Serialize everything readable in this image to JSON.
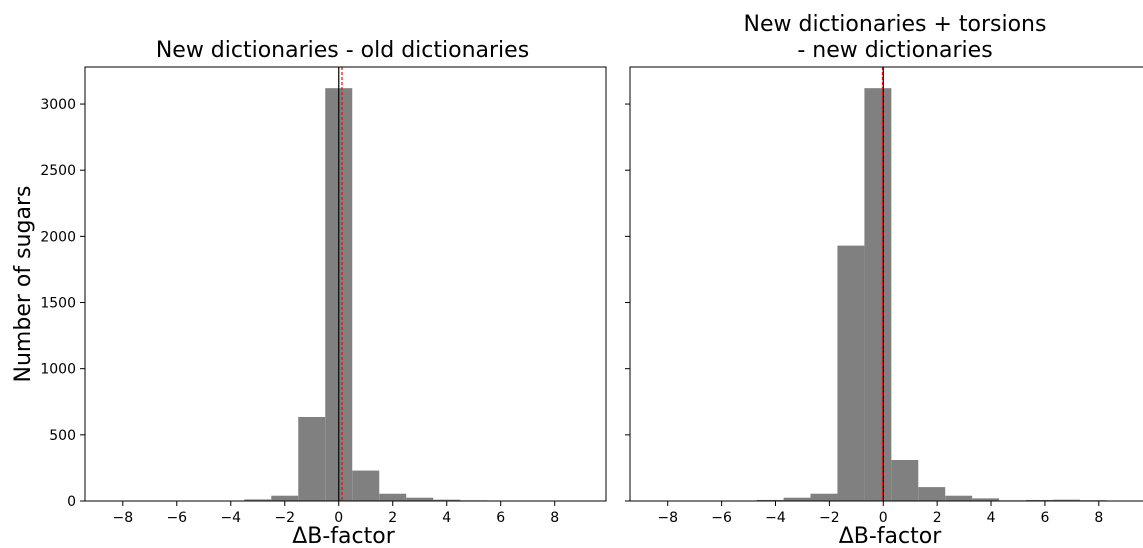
{
  "shared_ylabel": "Number of sugars",
  "colors": {
    "bar": "#808080",
    "mean_line": "#ff0000",
    "zero_line": "#000000"
  },
  "chart_data": [
    {
      "type": "bar",
      "title_lines": [
        "New dictionaries - old dictionaries"
      ],
      "xlabel": "ΔB-factor",
      "ylabel": "Number of sugars",
      "xlim": [
        -9.4,
        9.9
      ],
      "ylim": [
        0,
        3280
      ],
      "xticks": [
        -8,
        -6,
        -4,
        -2,
        0,
        2,
        4,
        6,
        8
      ],
      "yticks": [
        0,
        500,
        1000,
        1500,
        2000,
        2500,
        3000
      ],
      "bin_edges": [
        -4.5,
        -3.5,
        -2.5,
        -1.5,
        -0.5,
        0.5,
        1.5,
        2.5,
        3.5,
        4.5,
        5.5,
        6.5,
        7.5
      ],
      "counts": [
        3,
        12,
        40,
        635,
        3120,
        230,
        55,
        25,
        10,
        5,
        3,
        2
      ],
      "vlines": [
        {
          "x": 0.0,
          "color": "#000000",
          "style": "solid"
        },
        {
          "x": 0.12,
          "color": "#ff0000",
          "style": "dashed"
        }
      ]
    },
    {
      "type": "bar",
      "title_lines": [
        "New dictionaries + torsions",
        "- new dictionaries"
      ],
      "xlabel": "ΔB-factor",
      "xlim": [
        -9.4,
        9.9
      ],
      "ylim": [
        0,
        3280
      ],
      "xticks": [
        -8,
        -6,
        -4,
        -2,
        0,
        2,
        4,
        6,
        8
      ],
      "bin_edges": [
        -6.7,
        -5.7,
        -4.7,
        -3.7,
        -2.7,
        -1.7,
        -0.7,
        0.3,
        1.3,
        2.3,
        3.3,
        4.3,
        5.3,
        6.3,
        7.3,
        8.3
      ],
      "counts": [
        1,
        3,
        8,
        25,
        55,
        1930,
        3120,
        310,
        105,
        40,
        20,
        5,
        8,
        10,
        6
      ],
      "vlines": [
        {
          "x": 0.0,
          "color": "#000000",
          "style": "solid"
        },
        {
          "x": -0.03,
          "color": "#ff0000",
          "style": "dashed"
        }
      ]
    }
  ]
}
